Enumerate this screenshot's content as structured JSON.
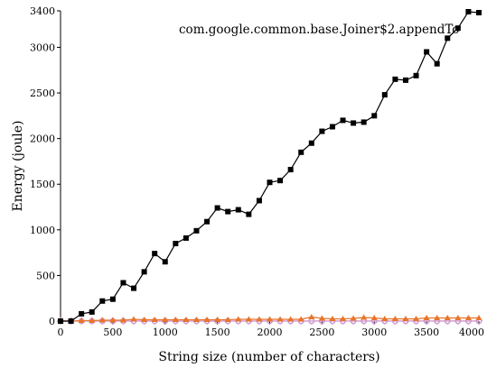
{
  "chart_data": {
    "type": "line",
    "title": "com.google.common.base.Joiner$2.appendTo",
    "xlabel": "String size (number of characters)",
    "ylabel": "Energy (joule)",
    "xlim": [
      0,
      4000
    ],
    "ylim": [
      0,
      3400
    ],
    "xticks": [
      0,
      500,
      1000,
      1500,
      2000,
      2500,
      3000,
      3500,
      4000
    ],
    "yticks": [
      0,
      500,
      1000,
      1500,
      2000,
      2500,
      3000,
      3400
    ],
    "grid": false,
    "legend": "none",
    "x": [
      0,
      100,
      200,
      300,
      400,
      500,
      600,
      700,
      800,
      900,
      1000,
      1100,
      1200,
      1300,
      1400,
      1500,
      1600,
      1700,
      1800,
      1900,
      2000,
      2100,
      2200,
      2300,
      2400,
      2500,
      2600,
      2700,
      2800,
      2900,
      3000,
      3100,
      3200,
      3300,
      3400,
      3500,
      3600,
      3700,
      3800,
      3900,
      4000
    ],
    "series": [
      {
        "marker": "square",
        "color": "#000000",
        "values": [
          0,
          0,
          80,
          100,
          220,
          240,
          420,
          360,
          540,
          740,
          650,
          850,
          910,
          990,
          1090,
          1240,
          1200,
          1220,
          1170,
          1320,
          1520,
          1540,
          1660,
          1850,
          1950,
          2080,
          2130,
          2200,
          2170,
          2180,
          2250,
          2480,
          2650,
          2640,
          2690,
          2950,
          2820,
          3100,
          3210,
          3390,
          3380
        ]
      },
      {
        "marker": "triangle",
        "color": "#e8742a",
        "values": [
          0,
          0,
          5,
          5,
          10,
          10,
          10,
          20,
          15,
          15,
          15,
          15,
          15,
          15,
          15,
          15,
          15,
          20,
          20,
          20,
          20,
          20,
          20,
          20,
          45,
          30,
          25,
          25,
          30,
          40,
          35,
          25,
          25,
          25,
          25,
          35,
          35,
          35,
          35,
          35,
          35
        ]
      },
      {
        "marker": "circle",
        "color": "#aaaadd",
        "values": [
          0,
          0,
          0,
          0,
          0,
          0,
          0,
          0,
          0,
          0,
          0,
          0,
          0,
          0,
          0,
          0,
          0,
          0,
          0,
          0,
          0,
          0,
          0,
          0,
          0,
          0,
          0,
          0,
          0,
          0,
          0,
          0,
          0,
          0,
          0,
          0,
          0,
          0,
          0,
          0,
          0
        ]
      },
      {
        "marker": "diamond",
        "color": "#d89acc",
        "values": [
          2,
          2,
          2,
          2,
          2,
          2,
          2,
          2,
          2,
          2,
          2,
          2,
          2,
          2,
          2,
          2,
          2,
          2,
          2,
          2,
          2,
          2,
          2,
          2,
          2,
          2,
          2,
          2,
          2,
          2,
          2,
          2,
          2,
          2,
          2,
          2,
          2,
          2,
          2,
          2,
          2
        ]
      }
    ]
  }
}
